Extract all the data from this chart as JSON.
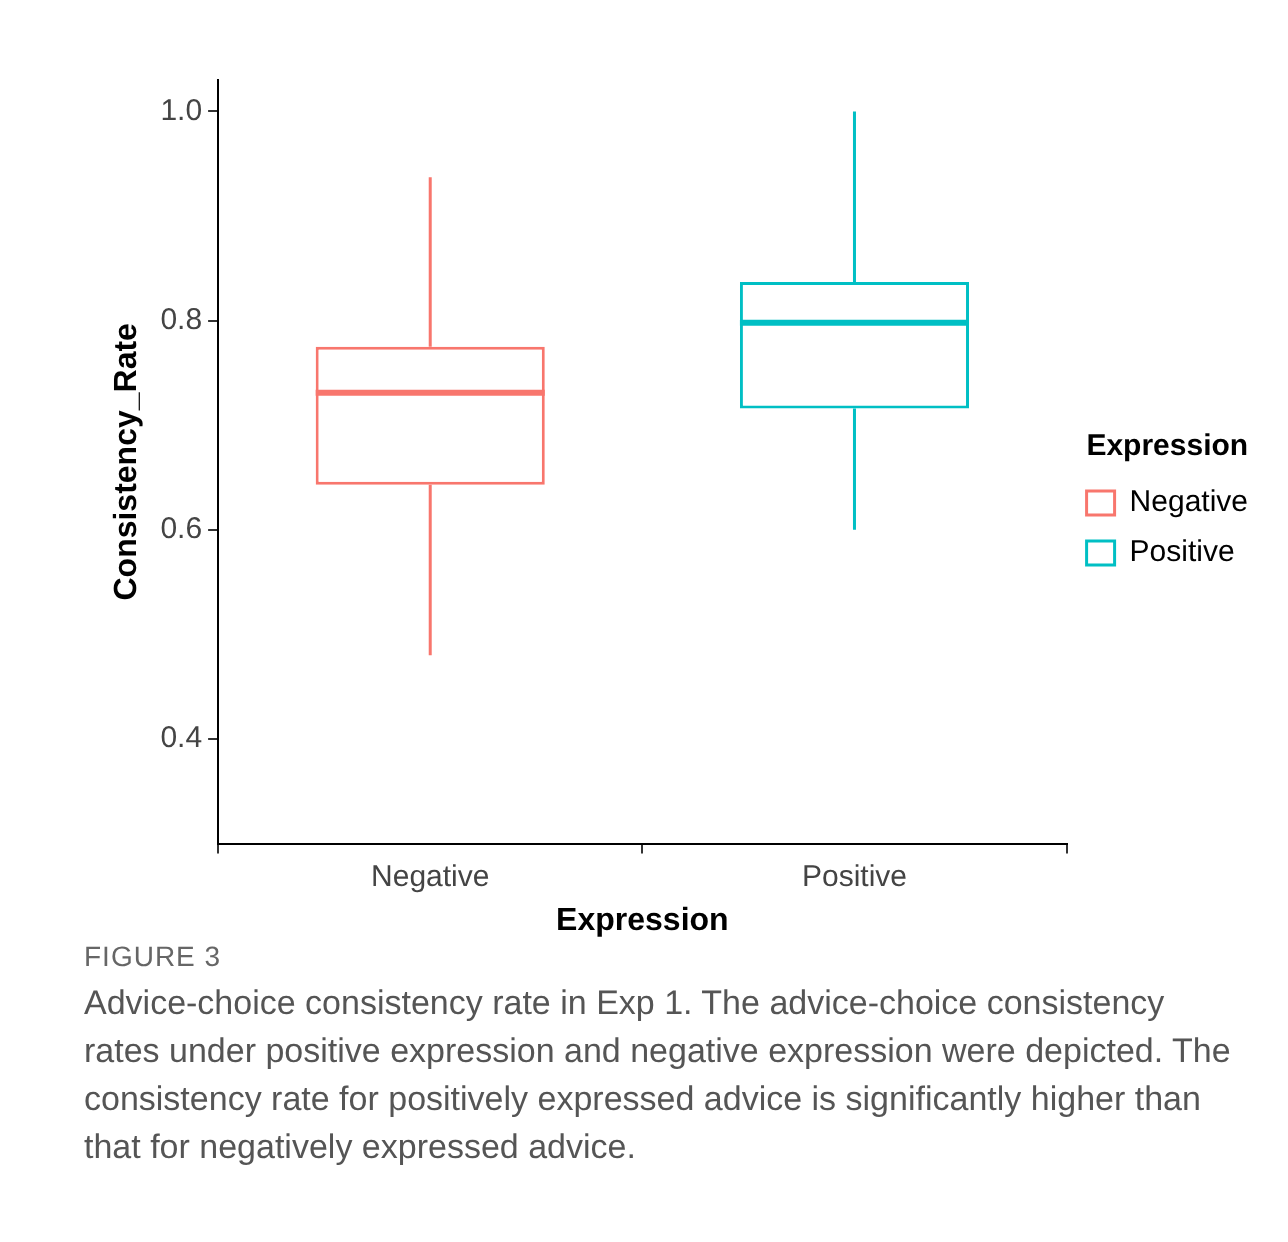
{
  "chart_data": {
    "type": "box",
    "xlabel": "Expression",
    "ylabel": "Consistency_Rate",
    "legend_title": "Expression",
    "legend": "right",
    "grid": false,
    "categories": [
      "Negative",
      "Positive"
    ],
    "series": [
      {
        "name": "Negative",
        "color": "#f8766d",
        "boxes": [
          {
            "low": 0.48,
            "q1": 0.643,
            "median": 0.731,
            "q3": 0.775,
            "high": 0.937
          },
          null
        ]
      },
      {
        "name": "Positive",
        "color": "#00bfc4",
        "boxes": [
          null,
          {
            "low": 0.6,
            "q1": 0.716,
            "median": 0.798,
            "q3": 0.837,
            "high": 1.0
          }
        ]
      }
    ],
    "ylim": [
      0.3,
      1.03
    ],
    "yticks": [
      0.4,
      0.6,
      0.8,
      {
        "value": 1,
        "label": "1.0"
      }
    ],
    "annotations": [
      "FIGURE 3",
      "Advice-choice consistency rate in Exp 1. The advice-choice consistency rates under positive expression and negative expression were depicted. The consistency rate for positively expressed advice is significantly higher than that for negatively expressed advice."
    ]
  }
}
